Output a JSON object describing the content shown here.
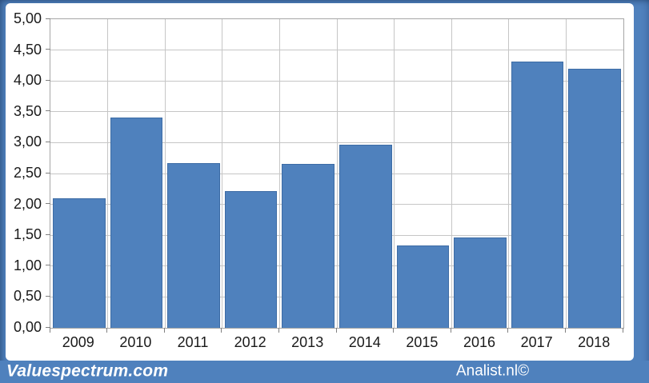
{
  "chart_data": {
    "type": "bar",
    "title": "",
    "xlabel": "",
    "ylabel": "",
    "categories": [
      "2009",
      "2010",
      "2011",
      "2012",
      "2013",
      "2014",
      "2015",
      "2016",
      "2017",
      "2018"
    ],
    "values": [
      2.1,
      3.41,
      2.67,
      2.21,
      2.66,
      2.97,
      1.33,
      1.47,
      4.32,
      4.2
    ],
    "ylim": [
      0,
      5
    ],
    "y_tick_step": 0.5,
    "y_tick_labels": [
      "5,00",
      "4,50",
      "4,00",
      "3,50",
      "3,00",
      "2,50",
      "2,00",
      "1,50",
      "1,00",
      "0,50",
      "0,00"
    ],
    "grid": true,
    "legend": false,
    "bar_color": "#4f81bd",
    "bar_edge_color": "#3d6ca5",
    "gridline_color": "#c6c6c6",
    "plot_border_color": "#a6a6a6",
    "tick_color": "#808080",
    "label_color": "#1a1a1a"
  },
  "frame": {
    "color": "#4f81bd",
    "card_background": "#ffffff"
  },
  "footer": {
    "left_text": "Valuespectrum.com",
    "right_text": "Analist.nl©",
    "background": "#4f81bd",
    "text_color": "#ffffff"
  }
}
